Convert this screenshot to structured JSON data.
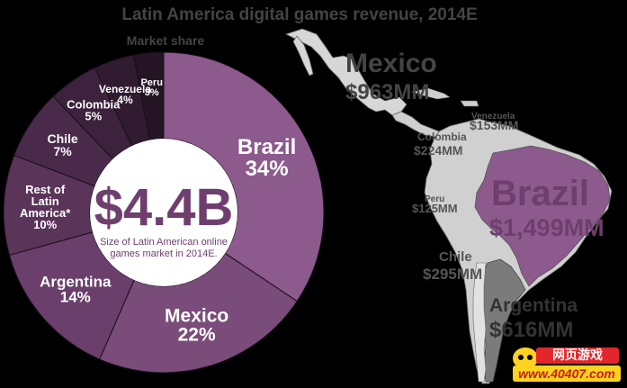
{
  "title": "Latin America digital games revenue, 2014E",
  "donut": {
    "subtitle": "Market share",
    "center_value": "$4.4B",
    "center_caption_line1": "Size of Latin American online",
    "center_caption_line2": "games market in 2014E."
  },
  "chart_data": {
    "type": "pie",
    "title": "Latin America digital games revenue, 2014E",
    "subtitle": "Market share",
    "total": "$4.4B",
    "slices": [
      {
        "label": "Brazil",
        "value": 34,
        "value_text": "34%",
        "color": "#8c5a8c"
      },
      {
        "label": "Mexico",
        "value": 22,
        "value_text": "22%",
        "color": "#7a4c7a"
      },
      {
        "label": "Argentina",
        "value": 14,
        "value_text": "14%",
        "color": "#6a3f6b"
      },
      {
        "label": "Rest of Latin America*",
        "label_lines": [
          "Rest of",
          "Latin",
          "America*"
        ],
        "value": 10,
        "value_text": "10%",
        "color": "#5a3459"
      },
      {
        "label": "Chile",
        "value": 7,
        "value_text": "7%",
        "color": "#4a2a4a"
      },
      {
        "label": "Colombia",
        "value": 5,
        "value_text": "5%",
        "color": "#3c223c"
      },
      {
        "label": "Venezuela",
        "value": 4,
        "value_text": "4%",
        "color": "#301b30"
      },
      {
        "label": "Peru",
        "value": 3,
        "value_text": "3%",
        "color": "#241424"
      }
    ]
  },
  "map": {
    "labels": [
      {
        "country": "Mexico",
        "value": "$963MM"
      },
      {
        "country": "Venezuela",
        "value": "$153MM"
      },
      {
        "country": "Colombia",
        "value": "$224MM"
      },
      {
        "country": "Peru",
        "value": "$125MM"
      },
      {
        "country": "Brazil",
        "value": "$1,499MM"
      },
      {
        "country": "Chile",
        "value": "$295MM"
      },
      {
        "country": "Argentina",
        "value": "$616MM"
      }
    ]
  },
  "watermark": {
    "top": "网页游戏",
    "bottom": "www.40407.com"
  }
}
